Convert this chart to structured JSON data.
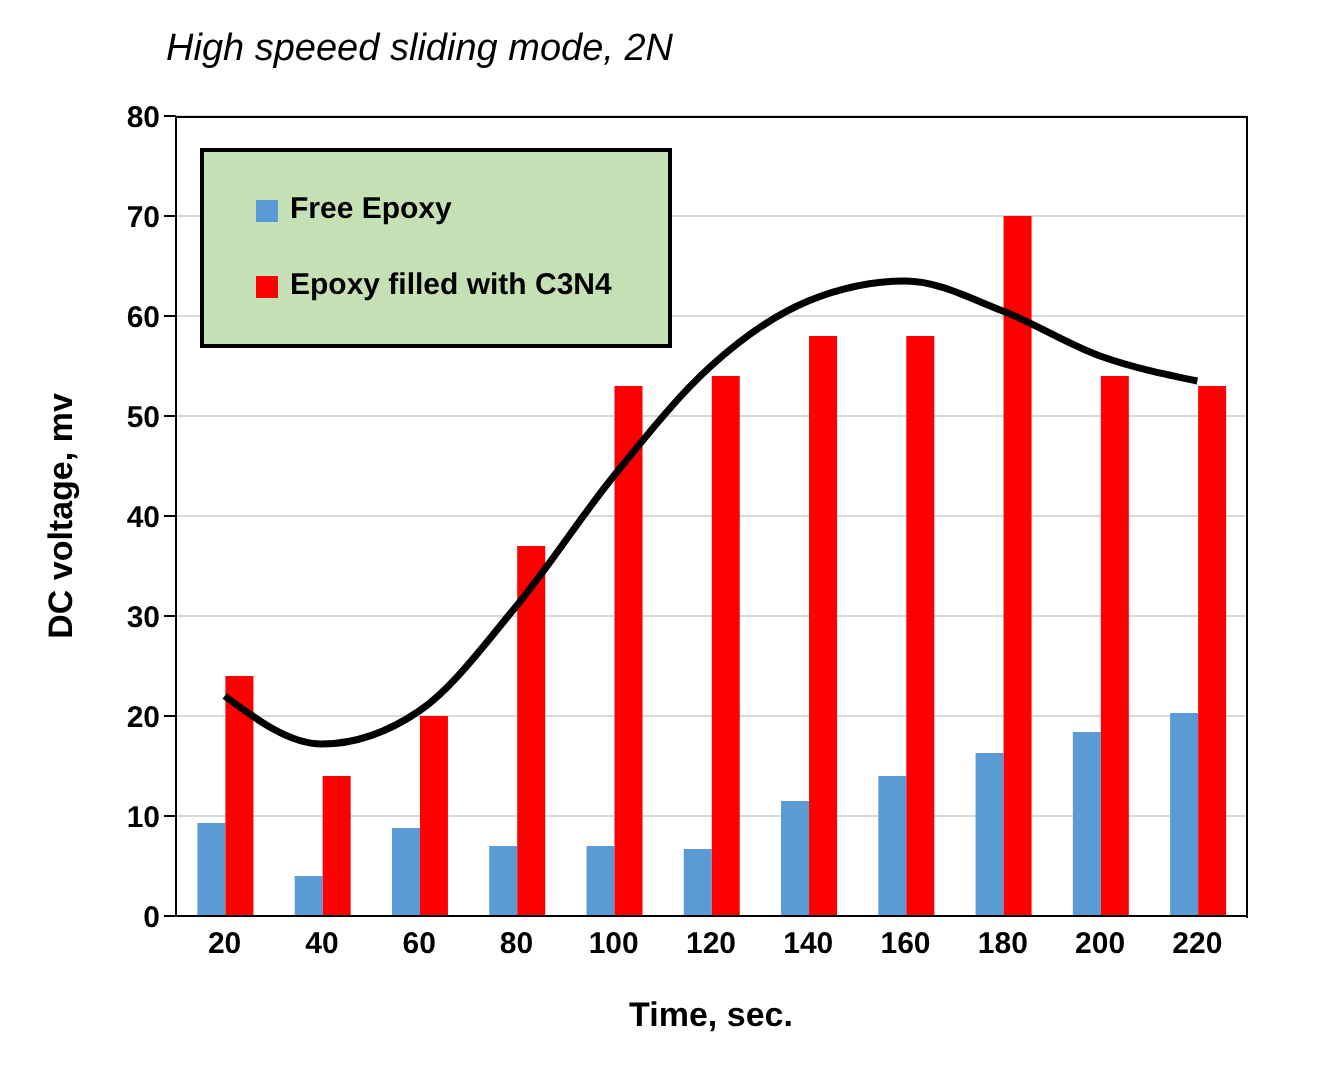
{
  "chart_data": {
    "type": "bar",
    "title": "High speeed sliding mode, 2N",
    "xlabel": "Time, sec.",
    "ylabel": "DC voltage, mv",
    "categories": [
      "20",
      "40",
      "60",
      "80",
      "100",
      "120",
      "140",
      "160",
      "180",
      "200",
      "220"
    ],
    "series": [
      {
        "name": "Free Epoxy",
        "color": "#5b9bd5",
        "values": [
          9.3,
          4,
          8.8,
          7,
          7,
          6.7,
          11.5,
          14,
          16.3,
          18.4,
          20.3
        ]
      },
      {
        "name": "Epoxy filled with C3N4",
        "color": "#ff0000",
        "values": [
          24,
          14,
          20,
          37,
          53,
          54,
          58,
          58,
          70,
          54,
          53
        ]
      },
      {
        "type": "line",
        "color": "#000000",
        "x": [
          "20",
          "40",
          "60",
          "80",
          "100",
          "120",
          "140",
          "160",
          "180",
          "200",
          "220"
        ],
        "values": [
          22,
          17.2,
          20.5,
          31,
          44,
          55,
          61.5,
          63.5,
          60.5,
          56,
          53.5
        ]
      }
    ],
    "ylim": [
      0,
      80
    ],
    "yticks": [
      0,
      10,
      20,
      30,
      40,
      50,
      60,
      70,
      80
    ],
    "grid": "y",
    "legend": "top left",
    "marker": "none"
  }
}
